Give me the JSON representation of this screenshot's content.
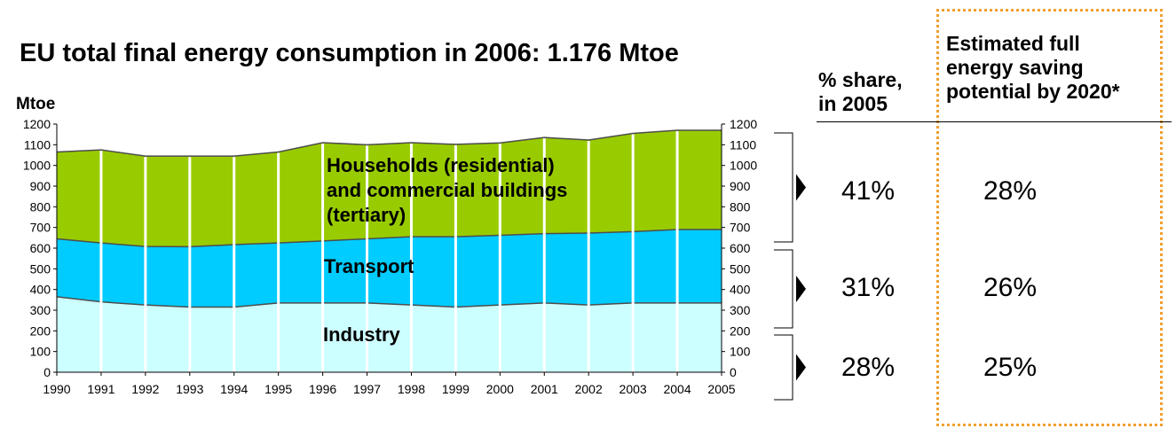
{
  "title": "EU total final energy consumption in 2006: 1.176 Mtoe",
  "chart_data": {
    "type": "area",
    "stacked": true,
    "ylabel": "Mtoe",
    "ylim": [
      0,
      1200
    ],
    "yticks": [
      "0",
      "100",
      "200",
      "300",
      "400",
      "500",
      "600",
      "700",
      "800",
      "900",
      "1000",
      "1100",
      "1200"
    ],
    "x": [
      "1990",
      "1991",
      "1992",
      "1993",
      "1994",
      "1995",
      "1996",
      "1997",
      "1998",
      "1999",
      "2000",
      "2001",
      "2002",
      "2003",
      "2004",
      "2005"
    ],
    "series": [
      {
        "name": "Industry",
        "color": "#ccffff",
        "values": [
          365,
          340,
          325,
          315,
          315,
          335,
          335,
          335,
          325,
          315,
          325,
          335,
          325,
          335,
          335,
          335
        ]
      },
      {
        "name": "Transport",
        "color": "#00ccff",
        "values": [
          280,
          285,
          283,
          292,
          302,
          290,
          300,
          310,
          330,
          340,
          337,
          335,
          348,
          345,
          355,
          355
        ]
      },
      {
        "name": "Households (residential) and commercial buildings (tertiary)",
        "color": "#99cc00",
        "values": [
          420,
          450,
          437,
          438,
          428,
          440,
          475,
          455,
          455,
          447,
          447,
          465,
          450,
          475,
          480,
          480
        ]
      }
    ],
    "label_lines": {
      "households": [
        "Households (residential)",
        "and commercial buildings",
        "(tertiary)"
      ],
      "transport": [
        "Transport"
      ],
      "industry": [
        "Industry"
      ]
    }
  },
  "table": {
    "share_header": [
      "% share,",
      "in 2005"
    ],
    "saving_header": [
      "Estimated full",
      "energy saving",
      "potential by 2020*"
    ],
    "rows": [
      {
        "sector": "households",
        "share": "41%",
        "saving": "28%"
      },
      {
        "sector": "transport",
        "share": "31%",
        "saving": "26%"
      },
      {
        "sector": "industry",
        "share": "28%",
        "saving": "25%"
      }
    ]
  }
}
